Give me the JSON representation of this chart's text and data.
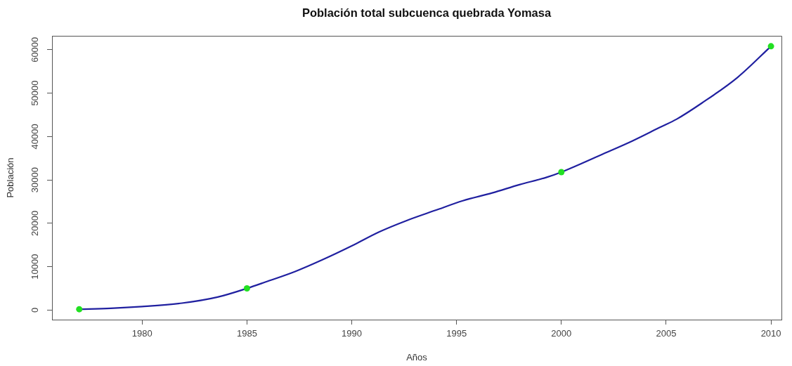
{
  "chart_data": {
    "type": "line",
    "title": "Población total subcuenca quebrada Yomasa",
    "xlabel": "Años",
    "ylabel": "Población",
    "xlim": [
      1975.7,
      2010.5
    ],
    "ylim": [
      -2200,
      63200
    ],
    "xticks": [
      1980,
      1985,
      1990,
      1995,
      2000,
      2005,
      2010
    ],
    "yticks": [
      0,
      10000,
      20000,
      30000,
      40000,
      50000,
      60000
    ],
    "grid": false,
    "legend": false,
    "series": [
      {
        "color": "#2020a0",
        "marker": "none",
        "line_style": "solid",
        "x": [
          1977,
          1978.5,
          1980,
          1981.9,
          1983.6,
          1985,
          1985.9,
          1987.3,
          1988.6,
          1990,
          1991.3,
          1992.6,
          1994,
          1995.3,
          1996.7,
          1998,
          1999.3,
          2000,
          2002,
          2003.4,
          2004.7,
          2005.5,
          2006.7,
          2008.4,
          2010
        ],
        "values": [
          200,
          400,
          800,
          1600,
          3000,
          5000,
          6500,
          8900,
          11600,
          14800,
          18000,
          20600,
          23000,
          25200,
          27000,
          28900,
          30600,
          31800,
          36000,
          39000,
          42100,
          44000,
          47700,
          53600,
          60800
        ]
      },
      {
        "type": "scatter",
        "color": "#22e022",
        "marker": "circle",
        "x": [
          1977,
          1985,
          2000,
          2010
        ],
        "values": [
          200,
          5000,
          31800,
          60800
        ]
      }
    ]
  }
}
